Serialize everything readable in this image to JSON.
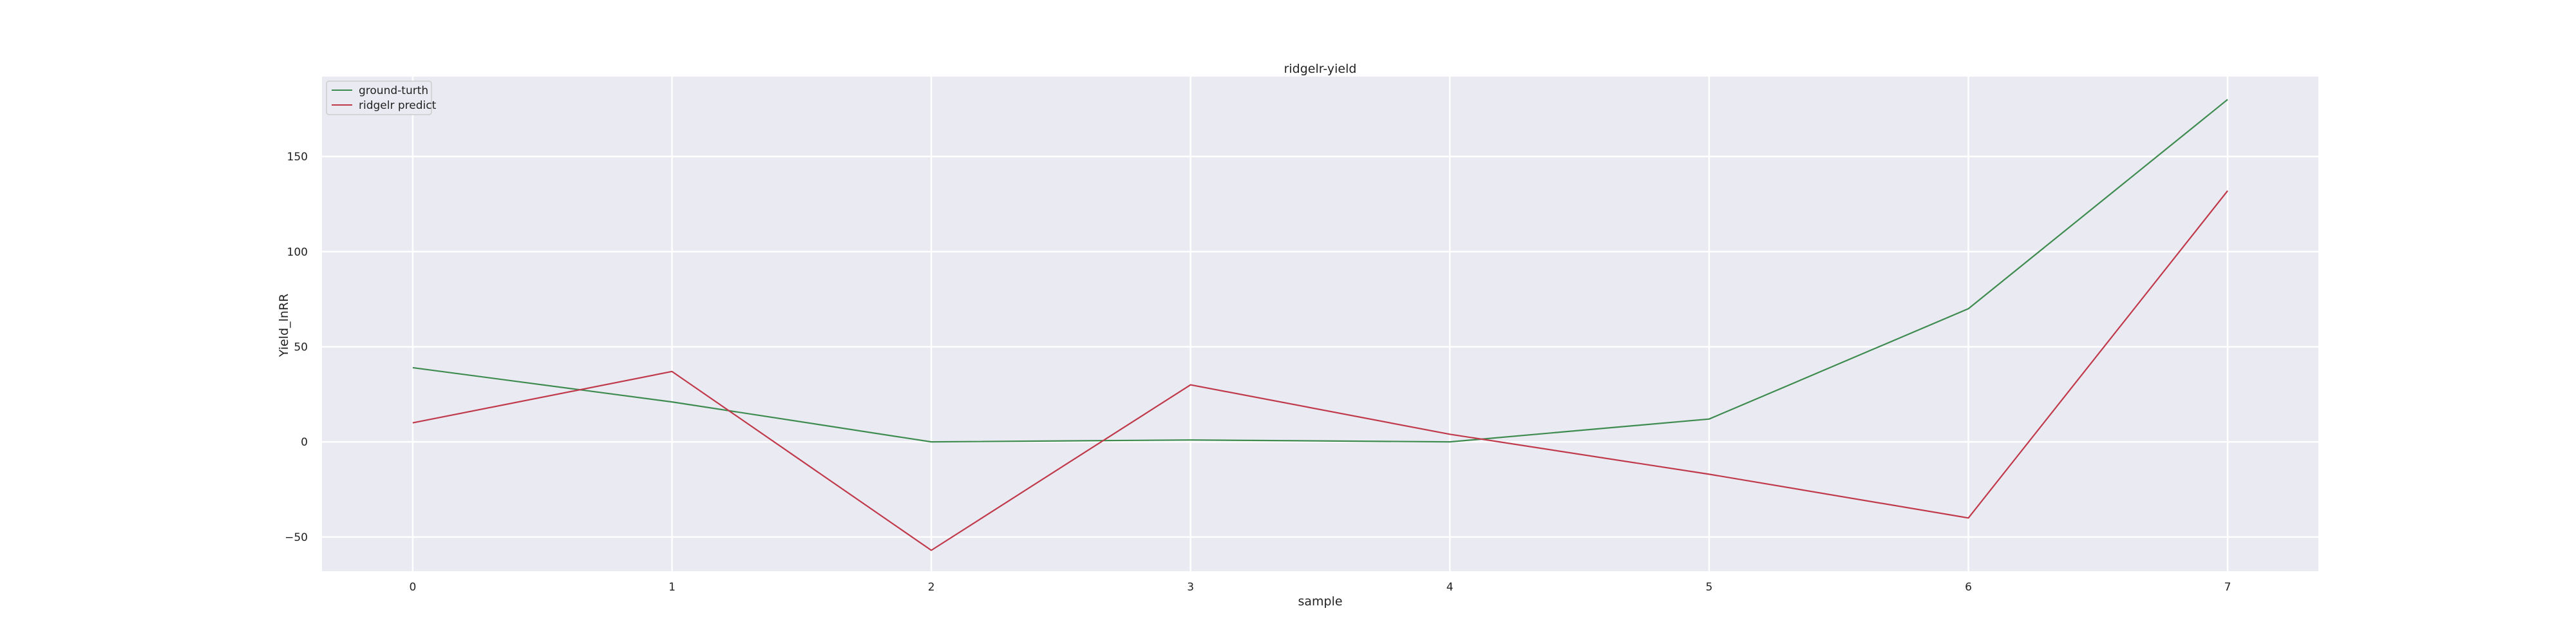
{
  "chart_data": {
    "type": "line",
    "title": "ridgelr-yield",
    "xlabel": "sample",
    "ylabel": "Yield_lnRR",
    "x": [
      0,
      1,
      2,
      3,
      4,
      5,
      6,
      7
    ],
    "xticks": [
      "0",
      "1",
      "2",
      "3",
      "4",
      "5",
      "6",
      "7"
    ],
    "yticks": [
      "−50",
      "0",
      "50",
      "100",
      "150"
    ],
    "ytick_values": [
      -50,
      0,
      50,
      100,
      150
    ],
    "xlim": [
      -0.35,
      7.35
    ],
    "ylim": [
      -68,
      192
    ],
    "grid": true,
    "legend_position": "top-left",
    "series": [
      {
        "name": "ground-turth",
        "color": "#3d8b4f",
        "values": [
          39,
          21,
          0,
          1,
          0,
          12,
          70,
          180
        ]
      },
      {
        "name": "ridgelr predict",
        "color": "#c0394a",
        "values": [
          10,
          37,
          -57,
          30,
          4,
          -17,
          -40,
          132
        ]
      }
    ]
  }
}
